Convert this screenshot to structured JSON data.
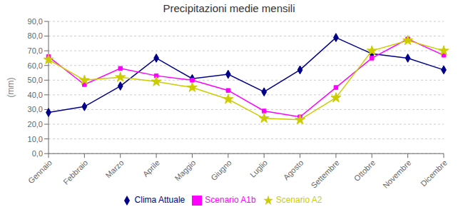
{
  "chart_data": {
    "type": "line",
    "title": "Precipitazioni medie mensili",
    "y_label": "(mm)",
    "categories": [
      "Gennaio",
      "Febbraio",
      "Marzo",
      "Aprile",
      "Maggio",
      "Giugno",
      "Luglio",
      "Agosto",
      "Settembre",
      "Ottobre",
      "Novembre",
      "Dicembre"
    ],
    "series": [
      {
        "name": "Clima Attuale",
        "color": "#00008B",
        "marker": "diamond",
        "values": [
          28,
          32,
          46,
          65,
          51,
          54,
          42,
          57,
          79,
          68,
          65,
          57
        ]
      },
      {
        "name": "Scenario A1b",
        "color": "#FF00FF",
        "marker": "square",
        "values": [
          66,
          47,
          58,
          53,
          50,
          43,
          29,
          25,
          45,
          65,
          78,
          67
        ]
      },
      {
        "name": "Scenario A2",
        "color": "#CCCC00",
        "marker": "star",
        "values": [
          64,
          50,
          52,
          49,
          45,
          37,
          24,
          23,
          38,
          70,
          77,
          70
        ]
      }
    ],
    "ylim": [
      0,
      90
    ],
    "yticks": [
      {
        "value": 0,
        "label": "0,0"
      },
      {
        "value": 10,
        "label": "10,0"
      },
      {
        "value": 20,
        "label": "20,0"
      },
      {
        "value": 30,
        "label": "30,0"
      },
      {
        "value": 40,
        "label": "40,0"
      },
      {
        "value": 50,
        "label": "50,0"
      },
      {
        "value": 60,
        "label": "60,0"
      },
      {
        "value": 70,
        "label": "70,0"
      },
      {
        "value": 80,
        "label": "80,0"
      },
      {
        "value": 90,
        "label": "90,0"
      }
    ],
    "grid": true,
    "legend": "bottom"
  }
}
